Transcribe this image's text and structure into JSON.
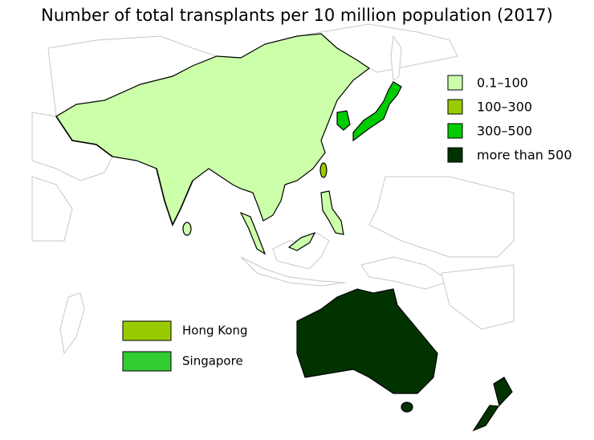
{
  "title": "Number of total transplants per 10 million population (2017)",
  "legend": {
    "items": [
      {
        "label": "0.1–100",
        "color": "#ccffaa"
      },
      {
        "label": "100–300",
        "color": "#99cc00"
      },
      {
        "label": "300–500",
        "color": "#00cc00"
      },
      {
        "label": "more than 500",
        "color": "#003300"
      }
    ]
  },
  "callouts": [
    {
      "label": "Hong Kong",
      "color": "#99cc00"
    },
    {
      "label": "Singapore",
      "color": "#33cc33"
    }
  ]
}
